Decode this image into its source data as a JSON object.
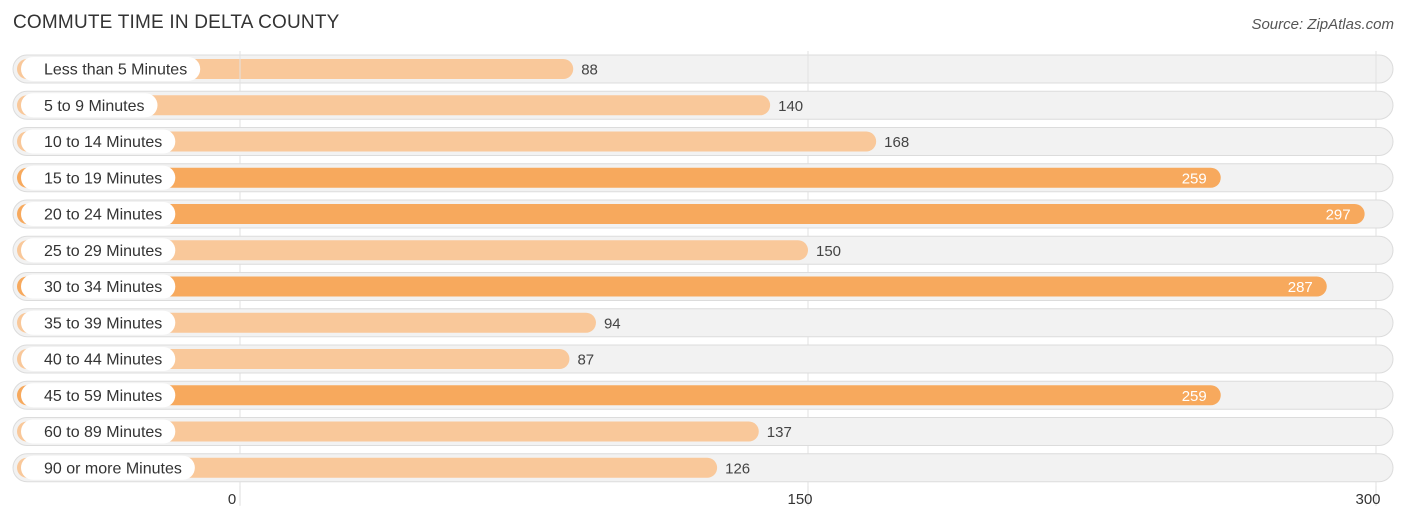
{
  "title": "COMMUTE TIME IN DELTA COUNTY",
  "source": "Source: ZipAtlas.com",
  "colors": {
    "bar_light": "#f9c89a",
    "bar_strong": "#f7a95d",
    "track": "#f2f2f2",
    "track_border": "#dcdcdc",
    "grid": "#dddddd",
    "label_text": "#333333",
    "value_text": "#444444",
    "value_text_inside": "#ffffff"
  },
  "chart_data": {
    "type": "bar",
    "orientation": "horizontal",
    "title": "COMMUTE TIME IN DELTA COUNTY",
    "categories": [
      "Less than 5 Minutes",
      "5 to 9 Minutes",
      "10 to 14 Minutes",
      "15 to 19 Minutes",
      "20 to 24 Minutes",
      "25 to 29 Minutes",
      "30 to 34 Minutes",
      "35 to 39 Minutes",
      "40 to 44 Minutes",
      "45 to 59 Minutes",
      "60 to 89 Minutes",
      "90 or more Minutes"
    ],
    "values": [
      88,
      140,
      168,
      259,
      297,
      150,
      287,
      94,
      87,
      259,
      137,
      126
    ],
    "xlim": [
      0,
      300
    ],
    "xticks": [
      0,
      150,
      300
    ],
    "xlabel": "",
    "ylabel": "",
    "grid": true,
    "highlight_threshold": 200
  }
}
